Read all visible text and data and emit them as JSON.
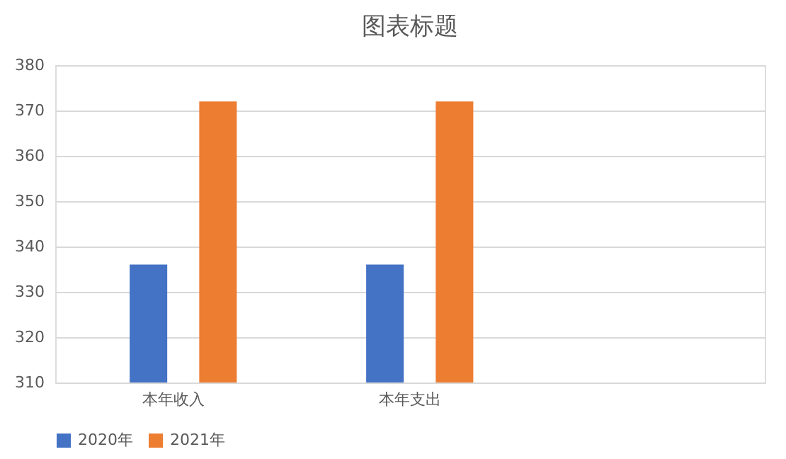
{
  "chart_data": {
    "type": "bar",
    "title": "图表标题",
    "categories": [
      "本年收入",
      "本年支出",
      null
    ],
    "series": [
      {
        "name": "2020年",
        "color": "#4472c4",
        "values": [
          336,
          336,
          null
        ]
      },
      {
        "name": "2021年",
        "color": "#ed7d31",
        "values": [
          372,
          372,
          null
        ]
      }
    ],
    "ylim": [
      310,
      380
    ],
    "yticks": [
      310,
      320,
      330,
      340,
      350,
      360,
      370,
      380
    ],
    "grid": "y",
    "legend": "bottom"
  }
}
